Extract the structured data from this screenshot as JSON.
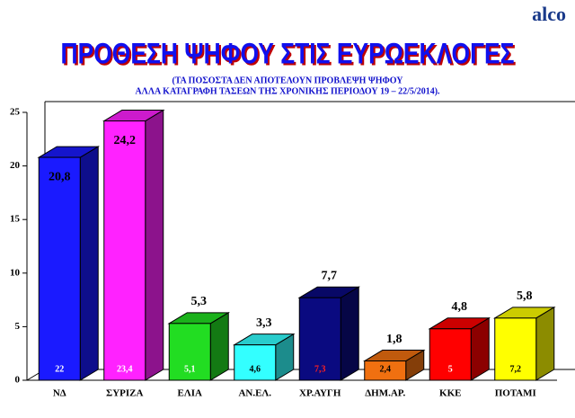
{
  "brand": "alco",
  "chart_data": {
    "type": "bar3d",
    "title": "ΠΡΟΘΕΣΗ ΨΗΦΟΥ ΣΤΙΣ ΕΥΡΩΕΚΛΟΓΕΣ",
    "subtitle": [
      "(ΤΑ ΠΟΣΟΣΤΑ ΔΕΝ ΑΠΟΤΕΛΟΥΝ ΠΡΟΒΛΕΨΗ ΨΗΦΟΥ",
      "ΑΛΛΑ ΚΑΤΑΓΡΑΦΗ ΤΑΣΕΩΝ ΤΗΣ ΧΡΟΝΙΚΗΣ ΠΕΡΙΟΔΟΥ 19 – 22/5/2014)."
    ],
    "categories": [
      "ΝΔ",
      "ΣΥΡΙΖΑ",
      "ΕΛΙΑ",
      "ΑΝ.ΕΛ.",
      "ΧΡ.ΑΥΓΗ",
      "ΔΗΜ.ΑΡ.",
      "ΚΚΕ",
      "ΠΟΤΑΜΙ"
    ],
    "values": [
      20.8,
      24.2,
      5.3,
      3.3,
      7.7,
      1.8,
      4.8,
      5.8
    ],
    "value_labels": [
      "20,8",
      "24,2",
      "5,3",
      "3,3",
      "7,7",
      "1,8",
      "4,8",
      "5,8"
    ],
    "colors": [
      "#1a1aff",
      "#ff22ff",
      "#22dd22",
      "#33ffff",
      "#0a0a80",
      "#f07010",
      "#ff0000",
      "#ffff00"
    ],
    "inner_values": [
      22,
      23.4,
      5.1,
      4.6,
      7.3,
      2.4,
      5,
      7.2
    ],
    "inner_value_labels": [
      "22",
      "23,4",
      "5,1",
      "4,6",
      "7,3",
      "2,4",
      "5",
      "7,2"
    ],
    "inner_label_colors": [
      "#ffffff",
      "#ffffff",
      "#ffffff",
      "#000000",
      "#ff2020",
      "#000000",
      "#ffffff",
      "#000000"
    ],
    "ylim": [
      0,
      25
    ],
    "yticks": [
      0,
      5,
      10,
      15,
      20,
      25
    ]
  }
}
